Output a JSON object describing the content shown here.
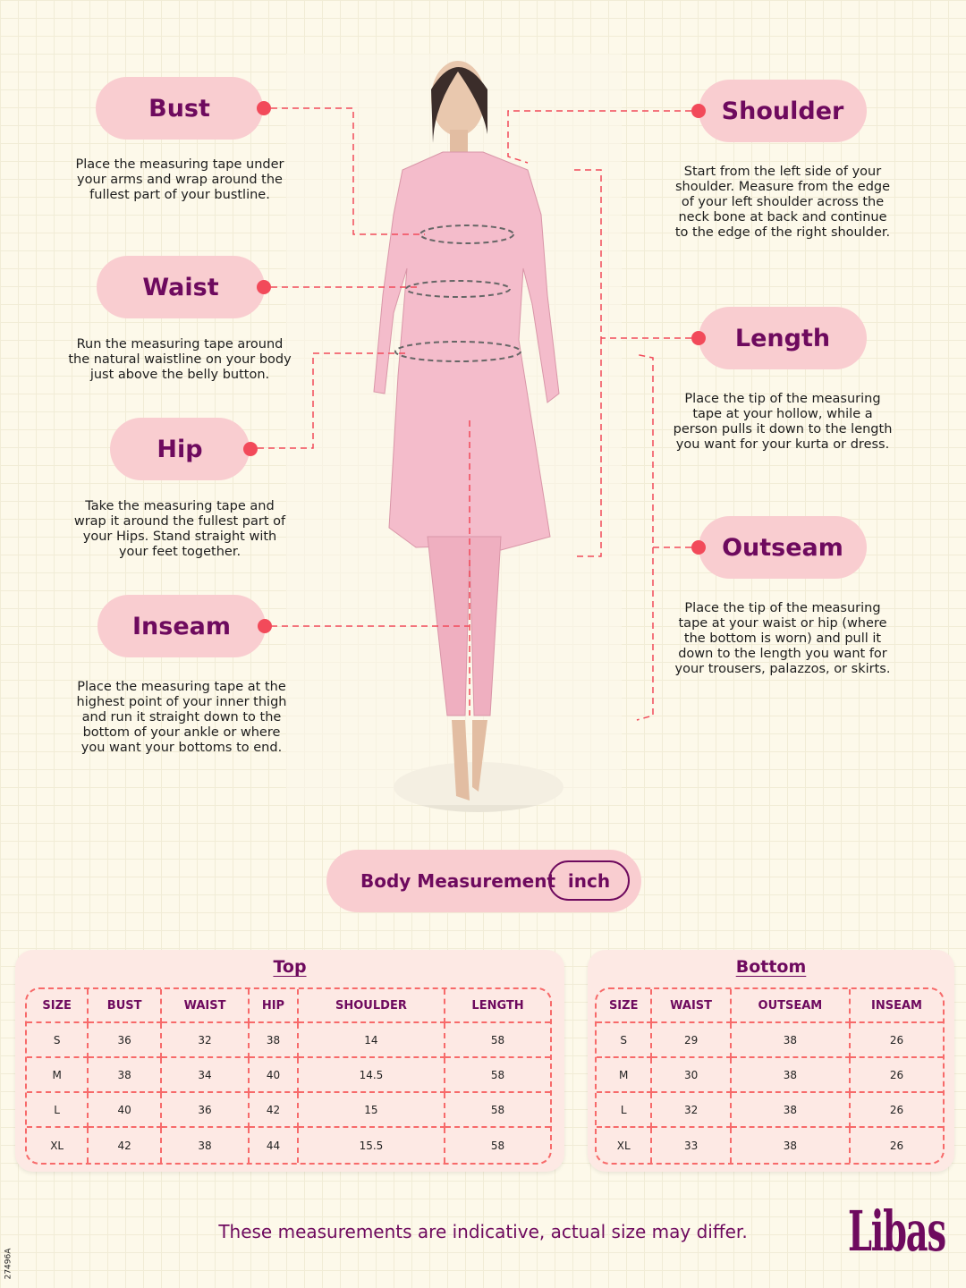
{
  "measurements": {
    "bust": {
      "label": "Bust",
      "desc": "Place the measuring tape under your arms and wrap around the fullest part of your bustline."
    },
    "waist": {
      "label": "Waist",
      "desc": "Run the measuring tape around the natural waistline on your body just above the belly button."
    },
    "hip": {
      "label": "Hip",
      "desc": "Take the measuring tape and wrap it around the fullest part of your Hips. Stand straight with your feet together."
    },
    "inseam": {
      "label": "Inseam",
      "desc": "Place the measuring tape at the highest point of your inner thigh and run it straight down to the bottom of your ankle or where you want your bottoms to end."
    },
    "shoulder": {
      "label": "Shoulder",
      "desc": "Start from the left side of your shoulder. Measure from the edge of your left shoulder across the neck bone at back and continue to the edge of the right shoulder."
    },
    "length": {
      "label": "Length",
      "desc": "Place the tip of the measuring tape at your hollow, while a person pulls it down to the length you want for your kurta or dress."
    },
    "outseam": {
      "label": "Outseam",
      "desc": "Place the tip of the measuring tape at your waist or hip (where the bottom is worn) and pull it down to the length you want for your trousers, palazzos, or skirts."
    }
  },
  "body_measurement": {
    "label": "Body Measurement",
    "unit": "inch"
  },
  "top": {
    "title": "Top",
    "headers": [
      "SIZE",
      "BUST",
      "WAIST",
      "HIP",
      "SHOULDER",
      "LENGTH"
    ],
    "rows": [
      [
        "S",
        "36",
        "32",
        "38",
        "14",
        "58"
      ],
      [
        "M",
        "38",
        "34",
        "40",
        "14.5",
        "58"
      ],
      [
        "L",
        "40",
        "36",
        "42",
        "15",
        "58"
      ],
      [
        "XL",
        "42",
        "38",
        "44",
        "15.5",
        "58"
      ]
    ]
  },
  "bottom": {
    "title": "Bottom",
    "headers": [
      "SIZE",
      "WAIST",
      "OUTSEAM",
      "INSEAM"
    ],
    "rows": [
      [
        "S",
        "29",
        "38",
        "26"
      ],
      [
        "M",
        "30",
        "38",
        "26"
      ],
      [
        "L",
        "32",
        "38",
        "26"
      ],
      [
        "XL",
        "33",
        "38",
        "26"
      ]
    ]
  },
  "footer": {
    "note": "These measurements are indicative, actual size may differ.",
    "brand": "Libas",
    "code": "27496A"
  },
  "colors": {
    "background": "#fdf9ea",
    "pill": "#f9cdd0",
    "accent": "#6e0a5e",
    "dashed": "#f15a5a"
  }
}
